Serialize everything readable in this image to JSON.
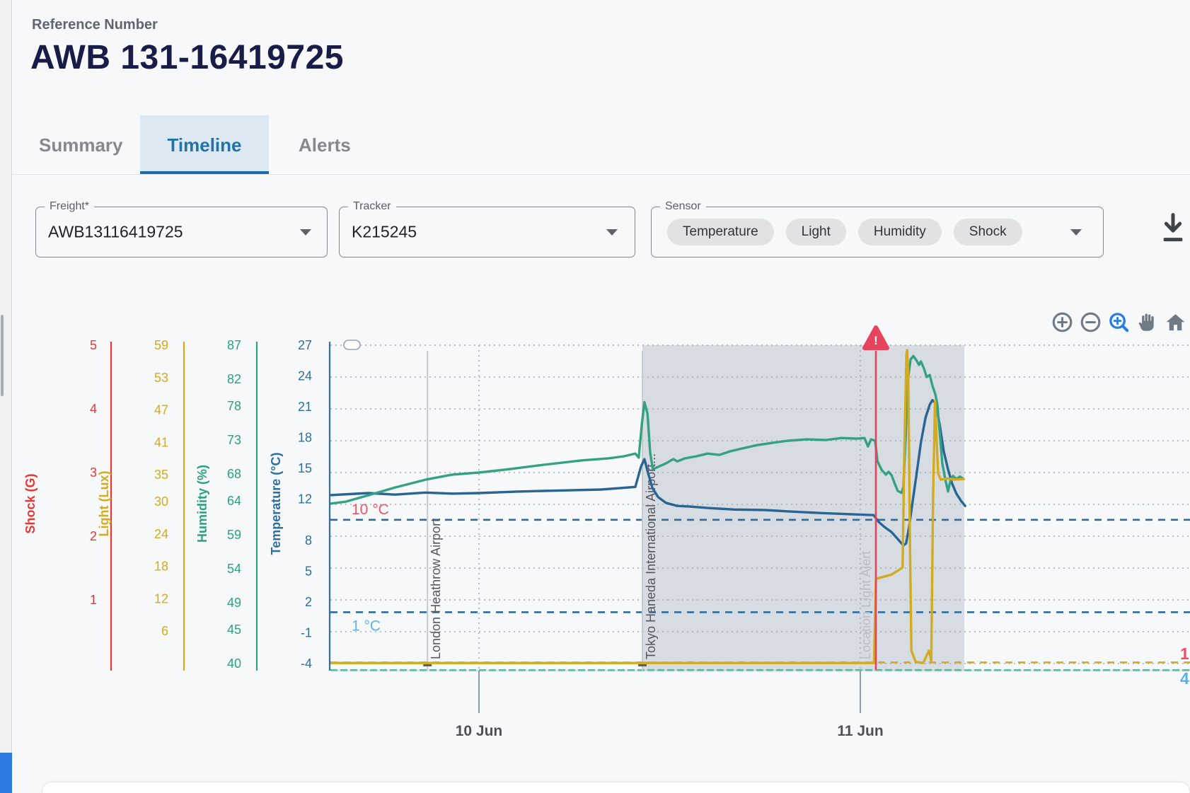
{
  "header": {
    "reference_label": "Reference Number",
    "title": "AWB 131-16419725"
  },
  "tabs": [
    {
      "label": "Summary",
      "active": false
    },
    {
      "label": "Timeline",
      "active": true
    },
    {
      "label": "Alerts",
      "active": false
    }
  ],
  "filters": {
    "freight": {
      "label": "Freight*",
      "value": "AWB13116419725"
    },
    "tracker": {
      "label": "Tracker",
      "value": "K215245"
    },
    "sensor": {
      "label": "Sensor",
      "chips": [
        "Temperature",
        "Light",
        "Humidity",
        "Shock"
      ]
    }
  },
  "toolbar": {
    "icons": [
      "zoom-in",
      "zoom-out",
      "box-zoom",
      "pan",
      "home"
    ]
  },
  "chart_data": {
    "type": "line",
    "x_unit": "days relative to 10 Jun 00:00",
    "x_range": [
      -0.39,
      1.865
    ],
    "x_ticks": [
      {
        "t": 0,
        "label": "10 Jun"
      },
      {
        "t": 1,
        "label": "11 Jun"
      }
    ],
    "grid": true,
    "shaded_region": {
      "t_start": 0.4286,
      "t_end": 1.2727,
      "color": "#d7dce2"
    },
    "axes": [
      {
        "name": "Shock (G)",
        "color": "#e53935",
        "max": 5,
        "min": 0,
        "ticks": [
          5,
          4,
          3,
          2,
          1
        ]
      },
      {
        "name": "Light (Lux)",
        "color": "#d2ab1e",
        "max": 59,
        "min": 0,
        "ticks": [
          59,
          53,
          47,
          41,
          35,
          30,
          24,
          18,
          12,
          6
        ]
      },
      {
        "name": "Humidity (%)",
        "color": "#2aa181",
        "max": 87,
        "min": 40,
        "ticks": [
          87,
          82,
          78,
          73,
          68,
          64,
          59,
          54,
          49,
          45,
          40
        ]
      },
      {
        "name": "Temperature (°C)",
        "color": "#2f6f9f",
        "max": 27,
        "min": -4,
        "ticks": [
          27,
          24,
          21,
          18,
          15,
          12,
          8,
          5,
          2,
          -1,
          -4
        ]
      }
    ],
    "thresholds": [
      {
        "label": "10 °C",
        "axis": 3,
        "value": 10,
        "line_color": "#2d6d9d",
        "dash": "10,8",
        "label_color": "#ef5368",
        "label_dy": -8
      },
      {
        "label": "1 °C",
        "axis": 3,
        "value": 1,
        "line_color": "#2d6d9d",
        "dash": "10,8",
        "label_color": "#5fb2e8",
        "label_dy": 26
      },
      {
        "label": "",
        "axis": 1,
        "value": 0.2,
        "line_color": "#d2ab1e",
        "dash": "10,8",
        "label_color": "#d2ab1e",
        "label_dy": 0
      },
      {
        "label": "",
        "axis": 2,
        "value": 39,
        "line_color": "#2aa181",
        "dash": "10,4",
        "label_color": "#2aa181",
        "label_dy": 0
      }
    ],
    "right_edge_labels": [
      {
        "text": "1",
        "color": "#ee4d66",
        "y": 932
      },
      {
        "text": "4",
        "color": "#5ab0e6",
        "y": 967
      }
    ],
    "annotations": [
      {
        "label": "London Heathrow Airport",
        "t": -0.135,
        "type": "line",
        "text_color": "#54585d"
      },
      {
        "label": "Tokyo Haneda International Airport...",
        "t": 0.4286,
        "type": "line",
        "text_color": "#54585d"
      },
      {
        "label": "Location Light Alert",
        "t": 1.0408,
        "type": "alert",
        "text_color": "#b9bec3",
        "line_color": "#e8435c"
      }
    ],
    "series": [
      {
        "name": "Temperature",
        "unit": "°C",
        "axis": 3,
        "color": "#2a6492",
        "points": [
          [
            -0.39,
            12.4
          ],
          [
            -0.29,
            12.6
          ],
          [
            -0.22,
            12.45
          ],
          [
            -0.14,
            12.65
          ],
          [
            -0.07,
            12.55
          ],
          [
            0,
            12.6
          ],
          [
            0.1,
            12.75
          ],
          [
            0.21,
            12.85
          ],
          [
            0.32,
            12.95
          ],
          [
            0.41,
            13.2
          ],
          [
            0.425,
            15.2
          ],
          [
            0.434,
            15.9
          ],
          [
            0.443,
            14.6
          ],
          [
            0.455,
            13.1
          ],
          [
            0.47,
            12.2
          ],
          [
            0.49,
            11.65
          ],
          [
            0.52,
            11.35
          ],
          [
            0.55,
            11.3
          ],
          [
            0.6,
            11.15
          ],
          [
            0.67,
            11.0
          ],
          [
            0.75,
            10.95
          ],
          [
            0.82,
            10.8
          ],
          [
            0.9,
            10.65
          ],
          [
            0.97,
            10.55
          ],
          [
            1.035,
            10.45
          ],
          [
            1.048,
            9.8
          ],
          [
            1.063,
            9.3
          ],
          [
            1.082,
            8.8
          ],
          [
            1.1,
            8.05
          ],
          [
            1.113,
            7.5
          ],
          [
            1.12,
            7.7
          ],
          [
            1.128,
            9.3
          ],
          [
            1.137,
            11.7
          ],
          [
            1.148,
            14.6
          ],
          [
            1.159,
            17.55
          ],
          [
            1.171,
            19.95
          ],
          [
            1.182,
            21.2
          ],
          [
            1.189,
            21.65
          ],
          [
            1.198,
            21.35
          ],
          [
            1.208,
            19.3
          ],
          [
            1.219,
            16.65
          ],
          [
            1.23,
            14.9
          ],
          [
            1.241,
            13.5
          ],
          [
            1.252,
            12.55
          ],
          [
            1.264,
            11.85
          ],
          [
            1.275,
            11.35
          ]
        ]
      },
      {
        "name": "Humidity",
        "unit": "%",
        "axis": 2,
        "color": "#35a183",
        "points": [
          [
            -0.39,
            63.6
          ],
          [
            -0.35,
            63.9
          ],
          [
            -0.29,
            64.85
          ],
          [
            -0.22,
            66.0
          ],
          [
            -0.14,
            67.15
          ],
          [
            -0.07,
            67.9
          ],
          [
            0,
            68.2
          ],
          [
            0.08,
            68.7
          ],
          [
            0.17,
            69.35
          ],
          [
            0.27,
            70.0
          ],
          [
            0.34,
            70.3
          ],
          [
            0.38,
            70.6
          ],
          [
            0.41,
            71.0
          ],
          [
            0.419,
            70.4
          ],
          [
            0.427,
            75.3
          ],
          [
            0.434,
            78.6
          ],
          [
            0.442,
            76.9
          ],
          [
            0.449,
            71.1
          ],
          [
            0.456,
            68.7
          ],
          [
            0.47,
            69.05
          ],
          [
            0.49,
            69.55
          ],
          [
            0.51,
            70.2
          ],
          [
            0.52,
            69.85
          ],
          [
            0.54,
            70.3
          ],
          [
            0.57,
            70.6
          ],
          [
            0.6,
            71.0
          ],
          [
            0.63,
            70.8
          ],
          [
            0.66,
            71.35
          ],
          [
            0.69,
            71.75
          ],
          [
            0.73,
            72.25
          ],
          [
            0.77,
            72.6
          ],
          [
            0.81,
            72.9
          ],
          [
            0.86,
            73.1
          ],
          [
            0.91,
            73.0
          ],
          [
            0.95,
            73.3
          ],
          [
            0.99,
            73.2
          ],
          [
            1.011,
            73.3
          ],
          [
            1.02,
            72.05
          ],
          [
            1.028,
            73.1
          ],
          [
            1.039,
            72.9
          ],
          [
            1.045,
            69.85
          ],
          [
            1.056,
            68.6
          ],
          [
            1.067,
            67.9
          ],
          [
            1.074,
            68.3
          ],
          [
            1.082,
            67.8
          ],
          [
            1.089,
            66.75
          ],
          [
            1.098,
            65.5
          ],
          [
            1.108,
            65.2
          ],
          [
            1.113,
            66.1
          ],
          [
            1.119,
            73.2
          ],
          [
            1.124,
            81.55
          ],
          [
            1.132,
            84.9
          ],
          [
            1.139,
            85.4
          ],
          [
            1.147,
            84.8
          ],
          [
            1.154,
            84.1
          ],
          [
            1.159,
            84.6
          ],
          [
            1.167,
            83.55
          ],
          [
            1.174,
            82.3
          ],
          [
            1.182,
            82.6
          ],
          [
            1.189,
            81.05
          ],
          [
            1.197,
            79.7
          ],
          [
            1.202,
            78.25
          ],
          [
            1.208,
            74.25
          ],
          [
            1.215,
            69.55
          ],
          [
            1.223,
            67.15
          ],
          [
            1.23,
            65.4
          ],
          [
            1.236,
            66.95
          ],
          [
            1.243,
            67.7
          ],
          [
            1.252,
            67.25
          ],
          [
            1.261,
            67.6
          ],
          [
            1.271,
            67.25
          ]
        ]
      },
      {
        "name": "Light",
        "unit": "Lux",
        "axis": 1,
        "color": "#d2ab1e",
        "points": [
          [
            -0.39,
            0.1
          ],
          [
            1.036,
            0.1
          ],
          [
            1.041,
            15.7
          ],
          [
            1.082,
            16.5
          ],
          [
            1.1,
            17.3
          ],
          [
            1.111,
            17.8
          ],
          [
            1.115,
            37.8
          ],
          [
            1.121,
            57.4
          ],
          [
            1.123,
            58.1
          ],
          [
            1.126,
            52.2
          ],
          [
            1.13,
            23.4
          ],
          [
            1.134,
            2.4
          ],
          [
            1.145,
            0.3
          ],
          [
            1.165,
            0.1
          ],
          [
            1.18,
            2.4
          ],
          [
            1.186,
            0.5
          ],
          [
            1.191,
            31.2
          ],
          [
            1.196,
            48.7
          ],
          [
            1.2,
            41.7
          ],
          [
            1.204,
            35.2
          ],
          [
            1.211,
            34.1
          ],
          [
            1.23,
            34.3
          ],
          [
            1.249,
            34.1
          ],
          [
            1.271,
            34.2
          ]
        ]
      }
    ]
  }
}
